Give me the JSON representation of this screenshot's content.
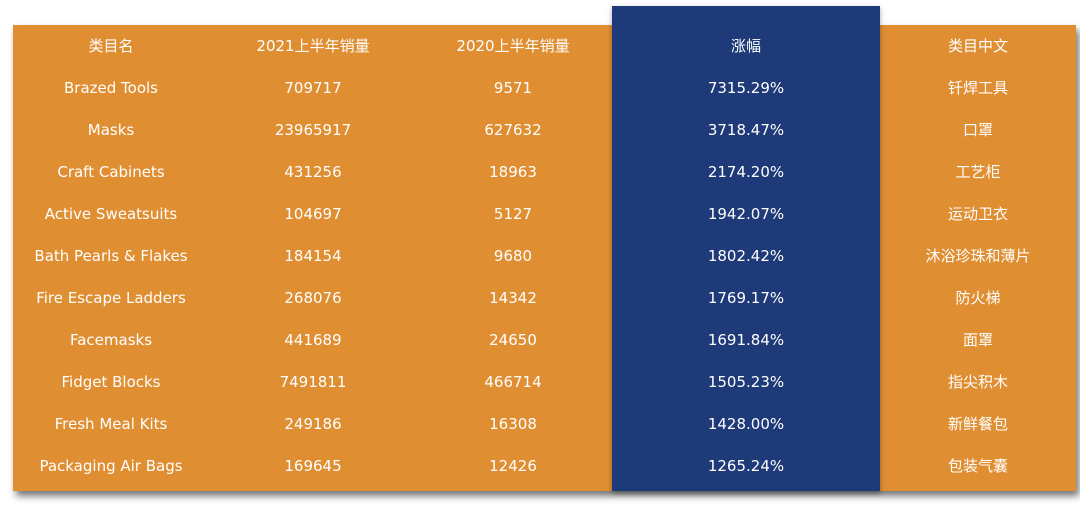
{
  "colors": {
    "table_background": "#E08E32",
    "highlight_column": "#1E3A78",
    "text": "#FFFFFF"
  },
  "table": {
    "headers": [
      "类目名",
      "2021上半年销量",
      "2020上半年销量",
      "涨幅",
      "类目中文"
    ],
    "rows": [
      [
        "Brazed Tools",
        "709717",
        "9571",
        "7315.29%",
        "钎焊工具"
      ],
      [
        "Masks",
        "23965917",
        "627632",
        "3718.47%",
        "口罩"
      ],
      [
        "Craft Cabinets",
        "431256",
        "18963",
        "2174.20%",
        "工艺柜"
      ],
      [
        "Active Sweatsuits",
        "104697",
        "5127",
        "1942.07%",
        "运动卫衣"
      ],
      [
        "Bath Pearls & Flakes",
        "184154",
        "9680",
        "1802.42%",
        "沐浴珍珠和薄片"
      ],
      [
        "Fire Escape Ladders",
        "268076",
        "14342",
        "1769.17%",
        "防火梯"
      ],
      [
        "Facemasks",
        "441689",
        "24650",
        "1691.84%",
        "面罩"
      ],
      [
        "Fidget Blocks",
        "7491811",
        "466714",
        "1505.23%",
        "指尖积木"
      ],
      [
        "Fresh Meal Kits",
        "249186",
        "16308",
        "1428.00%",
        "新鲜餐包"
      ],
      [
        "Packaging Air Bags",
        "169645",
        "12426",
        "1265.24%",
        "包装气囊"
      ]
    ]
  }
}
